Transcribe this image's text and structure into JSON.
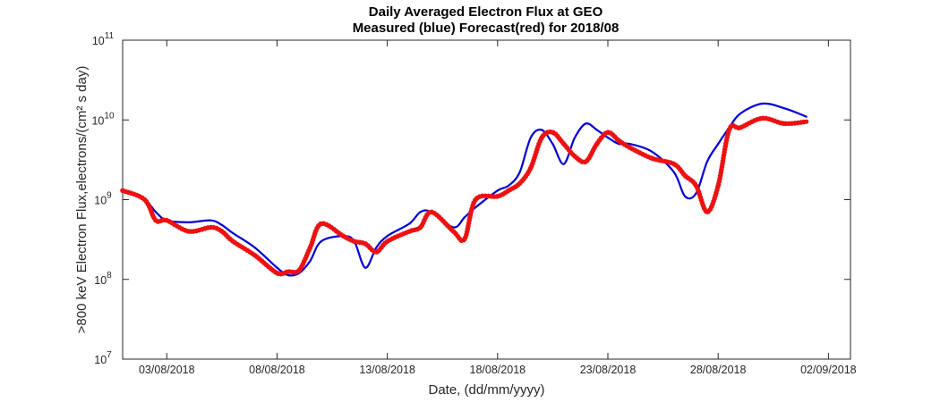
{
  "chart_data": {
    "type": "line",
    "title": "Daily Averaged Electron Flux at GEO",
    "subtitle": "Measured (blue) Forecast(red) for 2018/08",
    "xlabel": "Date, (dd/mm/yyyy)",
    "ylabel": ">800 keV Electron Flux,electrons/(cm² s day)",
    "y_scale": "log",
    "ylim": [
      10000000.0,
      100000000000.0
    ],
    "xlim": [
      "2018-08-01",
      "2018-09-03"
    ],
    "grid": false,
    "x_ticks": [
      "03/08/2018",
      "08/08/2018",
      "13/08/2018",
      "18/08/2018",
      "23/08/2018",
      "28/08/2018",
      "02/09/2018"
    ],
    "y_tick_exponents": [
      "7",
      "8",
      "9",
      "10",
      "11"
    ],
    "series": [
      {
        "name": "Measured",
        "color": "#0000dd",
        "style": "line",
        "x": [
          "2018-08-01",
          "2018-08-02",
          "2018-08-02 12:00",
          "2018-08-03",
          "2018-08-04",
          "2018-08-05",
          "2018-08-05 12:00",
          "2018-08-06",
          "2018-08-07",
          "2018-08-08",
          "2018-08-08 12:00",
          "2018-08-09",
          "2018-08-09 12:00",
          "2018-08-10",
          "2018-08-11",
          "2018-08-11 12:00",
          "2018-08-12",
          "2018-08-12 12:00",
          "2018-08-13",
          "2018-08-14",
          "2018-08-14 12:00",
          "2018-08-15",
          "2018-08-16",
          "2018-08-16 12:00",
          "2018-08-17",
          "2018-08-18",
          "2018-08-18 12:00",
          "2018-08-19",
          "2018-08-19 12:00",
          "2018-08-20",
          "2018-08-20 12:00",
          "2018-08-21",
          "2018-08-21 12:00",
          "2018-08-22",
          "2018-08-22 12:00",
          "2018-08-23",
          "2018-08-23 12:00",
          "2018-08-24",
          "2018-08-25",
          "2018-08-26",
          "2018-08-26 12:00",
          "2018-08-27",
          "2018-08-27 12:00",
          "2018-08-28",
          "2018-08-28 12:00",
          "2018-08-29",
          "2018-08-30",
          "2018-08-31",
          "2018-09-01"
        ],
        "y": [
          1300000000.0,
          1000000000.0,
          700000000.0,
          550000000.0,
          520000000.0,
          550000000.0,
          480000000.0,
          380000000.0,
          250000000.0,
          140000000.0,
          113000000.0,
          120000000.0,
          170000000.0,
          300000000.0,
          350000000.0,
          300000000.0,
          140000000.0,
          250000000.0,
          350000000.0,
          500000000.0,
          700000000.0,
          700000000.0,
          450000000.0,
          600000000.0,
          800000000.0,
          1300000000.0,
          1500000000.0,
          2200000000.0,
          6000000000.0,
          7500000000.0,
          5000000000.0,
          2800000000.0,
          6000000000.0,
          9000000000.0,
          7500000000.0,
          6000000000.0,
          5000000000.0,
          5000000000.0,
          4000000000.0,
          2200000000.0,
          1100000000.0,
          1200000000.0,
          3000000000.0,
          5000000000.0,
          8000000000.0,
          12000000000.0,
          16000000000.0,
          14000000000.0,
          11000000000.0
        ]
      },
      {
        "name": "Forecast",
        "color": "#ee1111",
        "style": "markers",
        "x": [
          "2018-08-01",
          "2018-08-02",
          "2018-08-02 12:00",
          "2018-08-03",
          "2018-08-04",
          "2018-08-05",
          "2018-08-05 12:00",
          "2018-08-06",
          "2018-08-07",
          "2018-08-08",
          "2018-08-08 12:00",
          "2018-08-09",
          "2018-08-09 12:00",
          "2018-08-10",
          "2018-08-11",
          "2018-08-11 12:00",
          "2018-08-12",
          "2018-08-12 12:00",
          "2018-08-13",
          "2018-08-14",
          "2018-08-14 12:00",
          "2018-08-15",
          "2018-08-16",
          "2018-08-16 12:00",
          "2018-08-17",
          "2018-08-18",
          "2018-08-18 12:00",
          "2018-08-19",
          "2018-08-19 12:00",
          "2018-08-20",
          "2018-08-20 12:00",
          "2018-08-21",
          "2018-08-21 12:00",
          "2018-08-22",
          "2018-08-22 12:00",
          "2018-08-23",
          "2018-08-23 12:00",
          "2018-08-24",
          "2018-08-25",
          "2018-08-26",
          "2018-08-26 12:00",
          "2018-08-27",
          "2018-08-27 12:00",
          "2018-08-28",
          "2018-08-28 12:00",
          "2018-08-29",
          "2018-08-30",
          "2018-08-31",
          "2018-09-01"
        ],
        "y": [
          1300000000.0,
          1000000000.0,
          550000000.0,
          550000000.0,
          400000000.0,
          450000000.0,
          400000000.0,
          300000000.0,
          200000000.0,
          120000000.0,
          125000000.0,
          130000000.0,
          250000000.0,
          500000000.0,
          350000000.0,
          300000000.0,
          280000000.0,
          220000000.0,
          300000000.0,
          400000000.0,
          450000000.0,
          700000000.0,
          400000000.0,
          320000000.0,
          1000000000.0,
          1100000000.0,
          1300000000.0,
          1600000000.0,
          2500000000.0,
          6000000000.0,
          7000000000.0,
          5000000000.0,
          3500000000.0,
          3000000000.0,
          5000000000.0,
          7000000000.0,
          5500000000.0,
          4500000000.0,
          3300000000.0,
          2800000000.0,
          2000000000.0,
          1500000000.0,
          700000000.0,
          1500000000.0,
          7500000000.0,
          8000000000.0,
          10500000000.0,
          9000000000.0,
          9500000000.0
        ]
      }
    ]
  }
}
